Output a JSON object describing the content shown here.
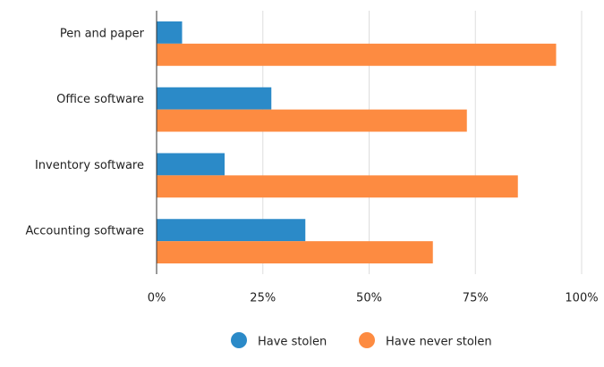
{
  "chart_data": {
    "type": "bar",
    "orientation": "horizontal",
    "categories": [
      "Pen and paper",
      "Office software",
      "Inventory software",
      "Accounting software"
    ],
    "series": [
      {
        "name": "Have stolen",
        "color": "#2b8ac8",
        "values": [
          6,
          27,
          16,
          35
        ]
      },
      {
        "name": "Have never stolen",
        "color": "#fd8b41",
        "values": [
          94,
          73,
          85,
          65
        ]
      }
    ],
    "xlim": [
      0,
      100
    ],
    "xticks": [
      {
        "value": 0,
        "label": "0%"
      },
      {
        "value": 25,
        "label": "25%"
      },
      {
        "value": 50,
        "label": "50%"
      },
      {
        "value": 75,
        "label": "75%"
      },
      {
        "value": 100,
        "label": "100%"
      }
    ],
    "grid": true,
    "legend": "bottom"
  }
}
